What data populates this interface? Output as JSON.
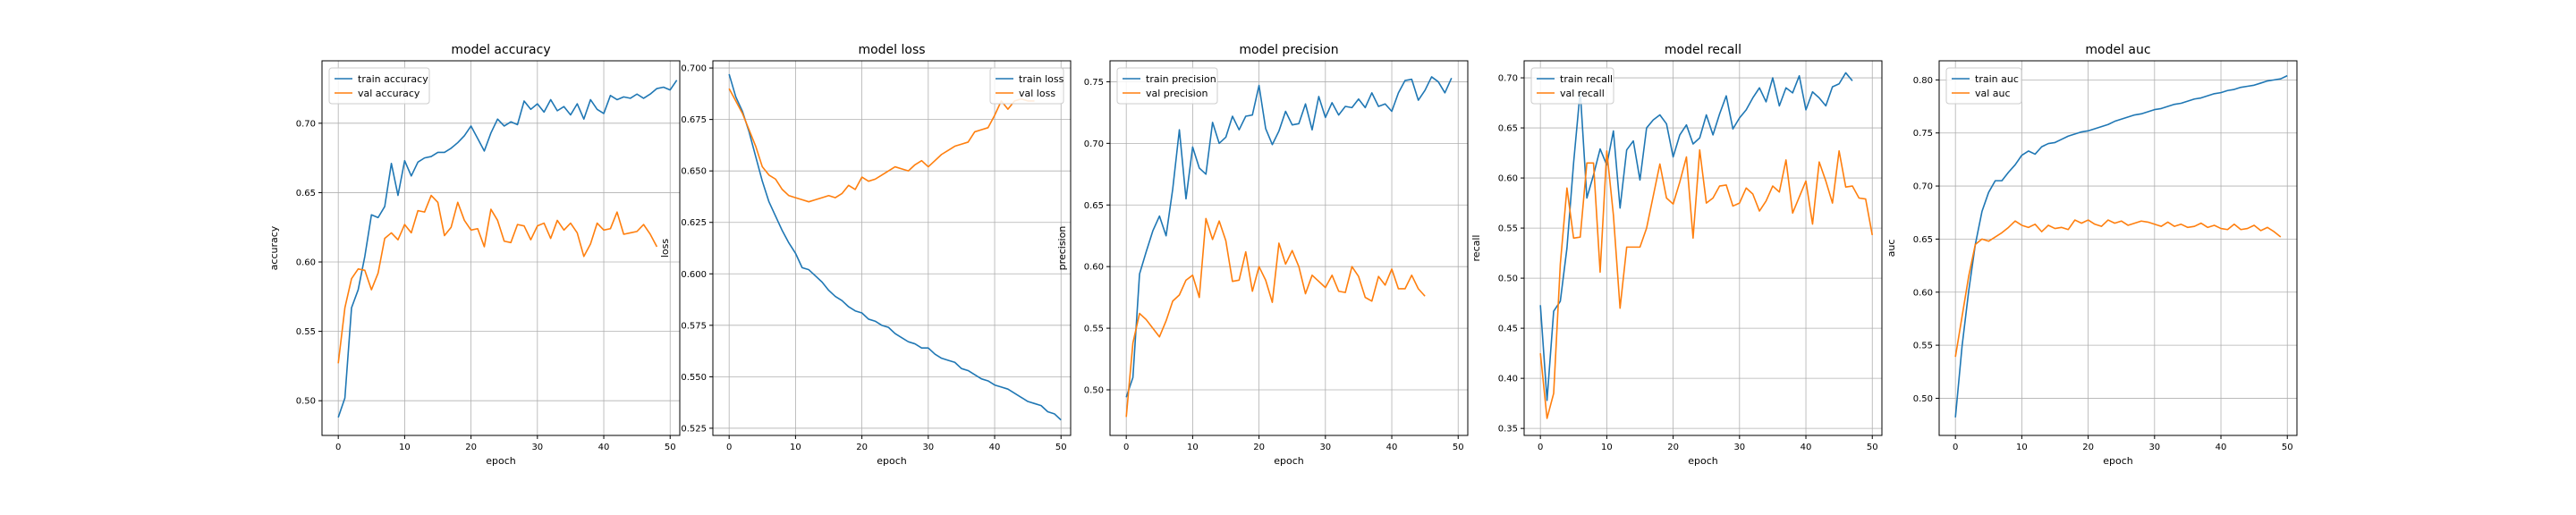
{
  "figure": {
    "colors": {
      "train": "#1f77b4",
      "val": "#ff7f0e",
      "grid": "#b0b0b0"
    }
  },
  "chart_data": [
    {
      "type": "line",
      "title": "model accuracy",
      "xlabel": "epoch",
      "ylabel": "accuracy",
      "xlim": [
        -2.45,
        51.45
      ],
      "ylim": [
        0.475,
        0.745
      ],
      "xticks": [
        0,
        10,
        20,
        30,
        40,
        50
      ],
      "yticks": [
        0.5,
        0.55,
        0.6,
        0.65,
        0.7
      ],
      "ytick_labels": [
        "0.50",
        "0.55",
        "0.60",
        "0.65",
        "0.70"
      ],
      "grid": true,
      "legend": "upper-left",
      "series": [
        {
          "name": "train accuracy",
          "color": "#1f77b4",
          "values": [
            0.488,
            0.502,
            0.567,
            0.58,
            0.604,
            0.634,
            0.632,
            0.64,
            0.671,
            0.648,
            0.673,
            0.662,
            0.672,
            0.675,
            0.676,
            0.679,
            0.679,
            0.682,
            0.686,
            0.691,
            0.698,
            0.689,
            0.68,
            0.693,
            0.703,
            0.698,
            0.701,
            0.699,
            0.716,
            0.71,
            0.714,
            0.708,
            0.717,
            0.709,
            0.712,
            0.706,
            0.714,
            0.703,
            0.717,
            0.71,
            0.707,
            0.72,
            0.717,
            0.719,
            0.718,
            0.721,
            0.718,
            0.721,
            0.725,
            0.726,
            0.724,
            0.731
          ]
        },
        {
          "name": "val accuracy",
          "color": "#ff7f0e",
          "values": [
            0.527,
            0.567,
            0.588,
            0.595,
            0.594,
            0.58,
            0.592,
            0.617,
            0.621,
            0.616,
            0.627,
            0.621,
            0.637,
            0.636,
            0.648,
            0.643,
            0.619,
            0.625,
            0.643,
            0.63,
            0.623,
            0.624,
            0.611,
            0.638,
            0.63,
            0.615,
            0.614,
            0.627,
            0.626,
            0.616,
            0.626,
            0.628,
            0.617,
            0.63,
            0.623,
            0.628,
            0.621,
            0.604,
            0.613,
            0.628,
            0.623,
            0.624,
            0.636,
            0.62,
            0.621,
            0.622,
            0.627,
            0.62,
            0.611
          ]
        }
      ]
    },
    {
      "type": "line",
      "title": "model loss",
      "xlabel": "epoch",
      "ylabel": "loss",
      "xlim": [
        -2.45,
        51.45
      ],
      "ylim": [
        0.5215,
        0.7035
      ],
      "xticks": [
        0,
        10,
        20,
        30,
        40,
        50
      ],
      "yticks": [
        0.525,
        0.55,
        0.575,
        0.6,
        0.625,
        0.65,
        0.675,
        0.7
      ],
      "ytick_labels": [
        "0.525",
        "0.550",
        "0.575",
        "0.600",
        "0.625",
        "0.650",
        "0.675",
        "0.700"
      ],
      "grid": true,
      "legend": "upper-right",
      "series": [
        {
          "name": "train loss",
          "color": "#1f77b4",
          "values": [
            0.697,
            0.686,
            0.679,
            0.669,
            0.657,
            0.645,
            0.635,
            0.628,
            0.621,
            0.615,
            0.61,
            0.603,
            0.602,
            0.599,
            0.596,
            0.592,
            0.589,
            0.587,
            0.584,
            0.582,
            0.581,
            0.578,
            0.577,
            0.575,
            0.574,
            0.571,
            0.569,
            0.567,
            0.566,
            0.564,
            0.564,
            0.561,
            0.559,
            0.558,
            0.557,
            0.554,
            0.553,
            0.551,
            0.549,
            0.548,
            0.546,
            0.545,
            0.544,
            0.542,
            0.54,
            0.538,
            0.537,
            0.536,
            0.533,
            0.532,
            0.529
          ]
        },
        {
          "name": "val loss",
          "color": "#ff7f0e",
          "values": [
            0.69,
            0.684,
            0.678,
            0.67,
            0.662,
            0.652,
            0.648,
            0.646,
            0.641,
            0.638,
            0.637,
            0.636,
            0.635,
            0.636,
            0.637,
            0.638,
            0.637,
            0.639,
            0.643,
            0.641,
            0.647,
            0.645,
            0.646,
            0.648,
            0.65,
            0.652,
            0.651,
            0.65,
            0.653,
            0.655,
            0.652,
            0.655,
            0.658,
            0.66,
            0.662,
            0.663,
            0.664,
            0.669,
            0.67,
            0.671,
            0.677,
            0.684,
            0.68,
            0.684,
            0.685,
            0.684,
            0.684
          ]
        }
      ]
    },
    {
      "type": "line",
      "title": "model precision",
      "xlabel": "epoch",
      "ylabel": "precision",
      "xlim": [
        -2.45,
        51.45
      ],
      "ylim": [
        0.463,
        0.767
      ],
      "xticks": [
        0,
        10,
        20,
        30,
        40,
        50
      ],
      "yticks": [
        0.5,
        0.55,
        0.6,
        0.65,
        0.7,
        0.75
      ],
      "ytick_labels": [
        "0.50",
        "0.55",
        "0.60",
        "0.65",
        "0.70",
        "0.75"
      ],
      "grid": true,
      "legend": "upper-left",
      "series": [
        {
          "name": "train precision",
          "color": "#1f77b4",
          "values": [
            0.494,
            0.51,
            0.594,
            0.612,
            0.629,
            0.641,
            0.625,
            0.663,
            0.711,
            0.655,
            0.697,
            0.68,
            0.675,
            0.717,
            0.7,
            0.705,
            0.722,
            0.711,
            0.722,
            0.723,
            0.747,
            0.712,
            0.699,
            0.71,
            0.726,
            0.715,
            0.716,
            0.732,
            0.711,
            0.738,
            0.721,
            0.733,
            0.723,
            0.73,
            0.729,
            0.736,
            0.729,
            0.741,
            0.73,
            0.732,
            0.726,
            0.741,
            0.751,
            0.752,
            0.735,
            0.743,
            0.754,
            0.75,
            0.741,
            0.753
          ]
        },
        {
          "name": "val precision",
          "color": "#ff7f0e",
          "values": [
            0.478,
            0.538,
            0.562,
            0.557,
            0.55,
            0.543,
            0.556,
            0.572,
            0.577,
            0.589,
            0.593,
            0.575,
            0.639,
            0.622,
            0.637,
            0.621,
            0.588,
            0.589,
            0.612,
            0.58,
            0.6,
            0.589,
            0.571,
            0.619,
            0.602,
            0.613,
            0.6,
            0.578,
            0.593,
            0.588,
            0.583,
            0.593,
            0.58,
            0.579,
            0.6,
            0.592,
            0.575,
            0.572,
            0.592,
            0.585,
            0.598,
            0.582,
            0.582,
            0.593,
            0.582,
            0.576
          ]
        }
      ]
    },
    {
      "type": "line",
      "title": "model recall",
      "xlabel": "epoch",
      "ylabel": "recall",
      "xlim": [
        -2.45,
        51.45
      ],
      "ylim": [
        0.343,
        0.717
      ],
      "xticks": [
        0,
        10,
        20,
        30,
        40,
        50
      ],
      "yticks": [
        0.35,
        0.4,
        0.45,
        0.5,
        0.55,
        0.6,
        0.65,
        0.7
      ],
      "ytick_labels": [
        "0.35",
        "0.40",
        "0.45",
        "0.50",
        "0.55",
        "0.60",
        "0.65",
        "0.70"
      ],
      "grid": true,
      "legend": "upper-left",
      "series": [
        {
          "name": "train recall",
          "color": "#1f77b4",
          "values": [
            0.473,
            0.378,
            0.467,
            0.477,
            0.53,
            0.615,
            0.687,
            0.58,
            0.603,
            0.629,
            0.613,
            0.647,
            0.57,
            0.628,
            0.637,
            0.598,
            0.65,
            0.658,
            0.663,
            0.654,
            0.621,
            0.643,
            0.653,
            0.634,
            0.64,
            0.663,
            0.643,
            0.664,
            0.682,
            0.649,
            0.66,
            0.668,
            0.68,
            0.69,
            0.676,
            0.7,
            0.672,
            0.69,
            0.685,
            0.702,
            0.668,
            0.686,
            0.68,
            0.672,
            0.691,
            0.694,
            0.705,
            0.697
          ]
        },
        {
          "name": "val recall",
          "color": "#ff7f0e",
          "values": [
            0.425,
            0.36,
            0.385,
            0.514,
            0.59,
            0.54,
            0.541,
            0.615,
            0.615,
            0.506,
            0.627,
            0.563,
            0.47,
            0.531,
            0.531,
            0.531,
            0.55,
            0.582,
            0.614,
            0.58,
            0.574,
            0.596,
            0.621,
            0.54,
            0.628,
            0.575,
            0.58,
            0.592,
            0.593,
            0.572,
            0.575,
            0.59,
            0.584,
            0.567,
            0.577,
            0.592,
            0.586,
            0.618,
            0.565,
            0.581,
            0.597,
            0.554,
            0.616,
            0.597,
            0.575,
            0.627,
            0.591,
            0.592,
            0.58,
            0.579,
            0.543
          ]
        }
      ]
    },
    {
      "type": "line",
      "title": "model auc",
      "xlabel": "epoch",
      "ylabel": "auc",
      "xlim": [
        -2.45,
        51.45
      ],
      "ylim": [
        0.465,
        0.818
      ],
      "xticks": [
        0,
        10,
        20,
        30,
        40,
        50
      ],
      "yticks": [
        0.5,
        0.55,
        0.6,
        0.65,
        0.7,
        0.75,
        0.8
      ],
      "ytick_labels": [
        "0.50",
        "0.55",
        "0.60",
        "0.65",
        "0.70",
        "0.75",
        "0.80"
      ],
      "grid": true,
      "legend": "upper-left",
      "series": [
        {
          "name": "train auc",
          "color": "#1f77b4",
          "values": [
            0.482,
            0.549,
            0.601,
            0.645,
            0.676,
            0.694,
            0.705,
            0.705,
            0.713,
            0.72,
            0.729,
            0.733,
            0.73,
            0.737,
            0.74,
            0.741,
            0.744,
            0.747,
            0.749,
            0.751,
            0.752,
            0.754,
            0.756,
            0.758,
            0.761,
            0.763,
            0.765,
            0.767,
            0.768,
            0.77,
            0.772,
            0.773,
            0.775,
            0.777,
            0.778,
            0.78,
            0.782,
            0.783,
            0.785,
            0.787,
            0.788,
            0.79,
            0.791,
            0.793,
            0.794,
            0.795,
            0.797,
            0.799,
            0.8,
            0.801,
            0.804
          ]
        },
        {
          "name": "val auc",
          "color": "#ff7f0e",
          "values": [
            0.539,
            0.577,
            0.615,
            0.645,
            0.65,
            0.648,
            0.652,
            0.656,
            0.661,
            0.667,
            0.663,
            0.661,
            0.664,
            0.657,
            0.663,
            0.66,
            0.661,
            0.659,
            0.668,
            0.665,
            0.668,
            0.664,
            0.662,
            0.668,
            0.665,
            0.667,
            0.663,
            0.665,
            0.667,
            0.666,
            0.664,
            0.662,
            0.666,
            0.662,
            0.664,
            0.661,
            0.662,
            0.665,
            0.661,
            0.663,
            0.66,
            0.659,
            0.664,
            0.659,
            0.66,
            0.663,
            0.658,
            0.661,
            0.657,
            0.652
          ]
        }
      ]
    }
  ]
}
